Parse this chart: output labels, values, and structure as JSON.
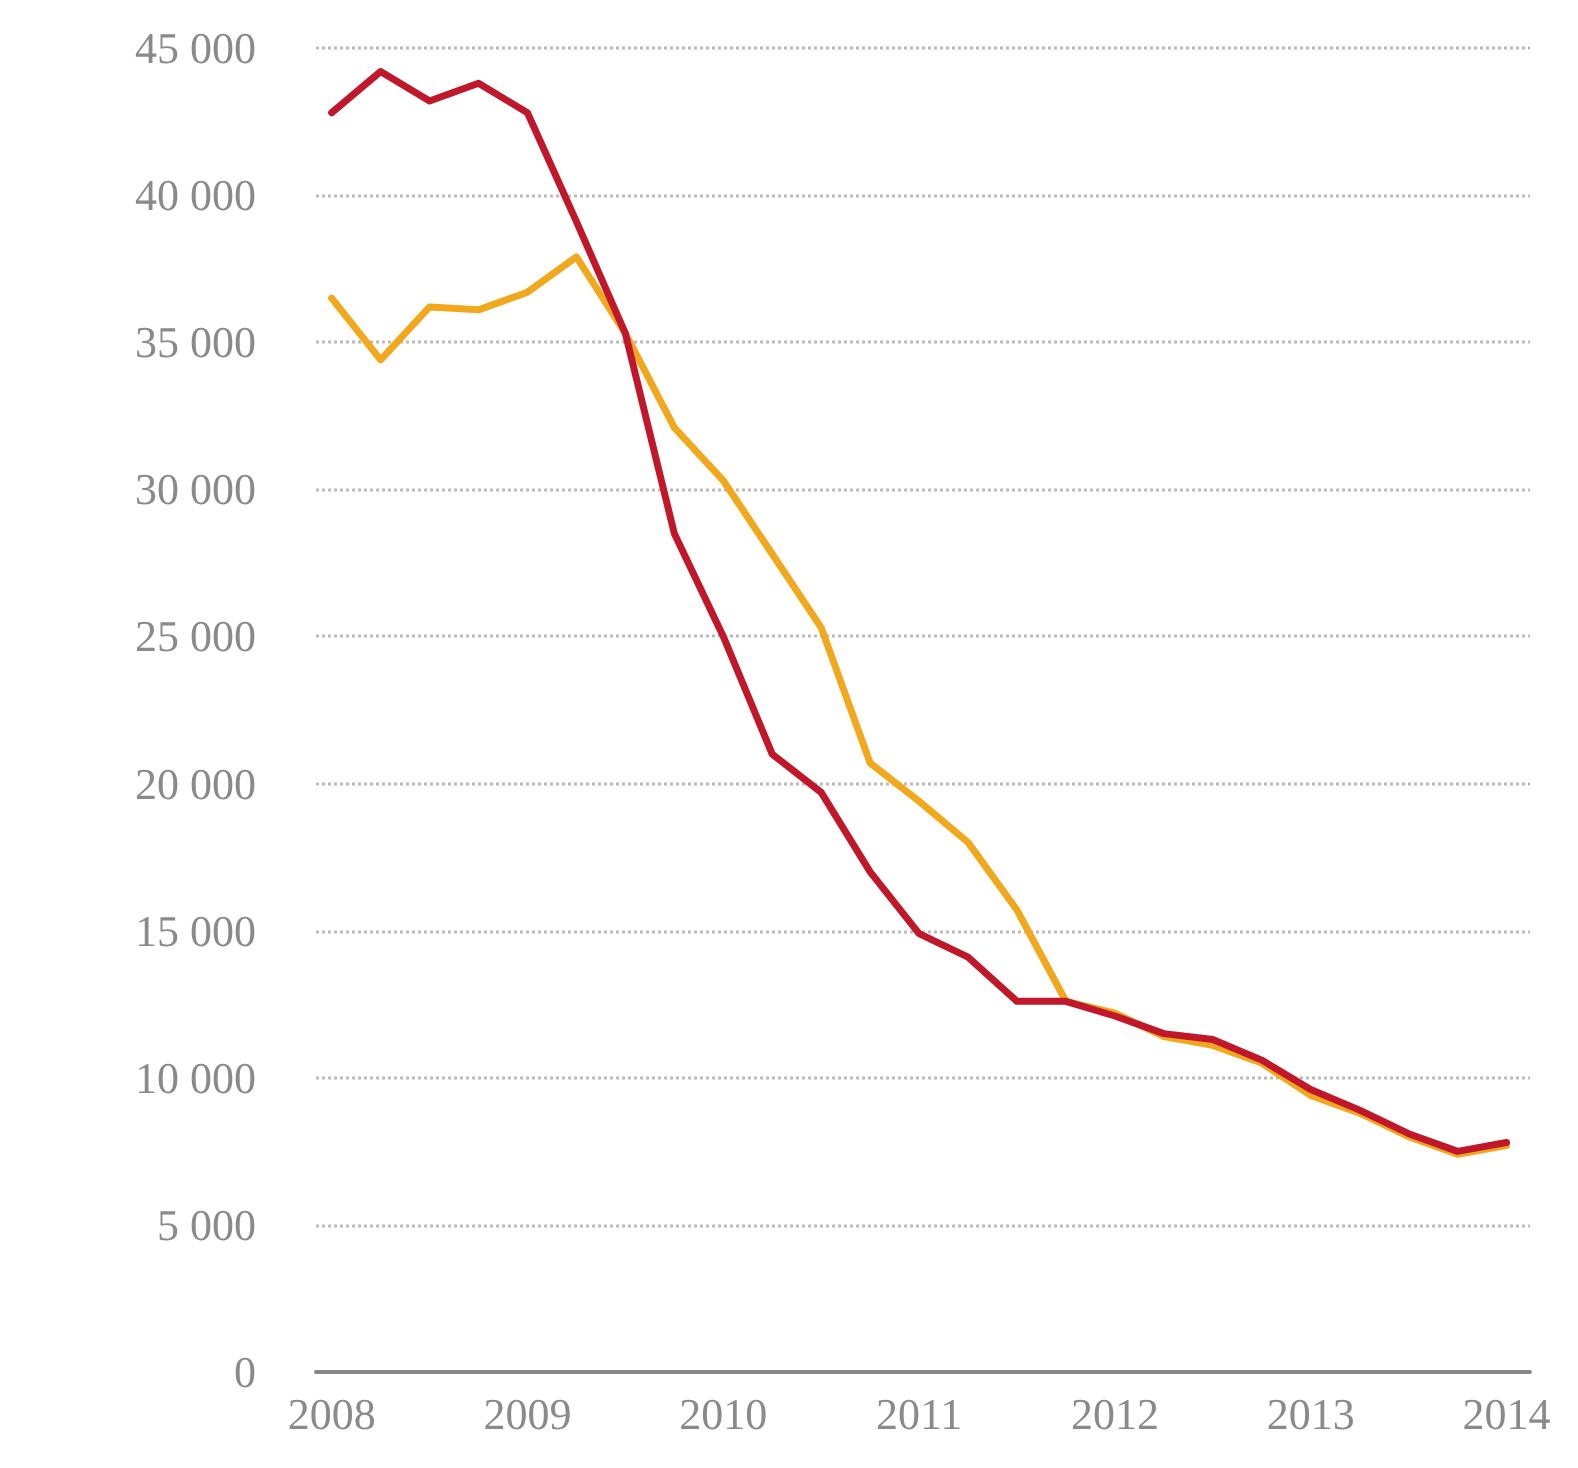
{
  "chart_data": {
    "type": "line",
    "x": [
      2008,
      2008.25,
      2008.5,
      2008.75,
      2009,
      2009.25,
      2009.5,
      2009.75,
      2010,
      2010.25,
      2010.5,
      2010.75,
      2011,
      2011.25,
      2011.5,
      2011.75,
      2012,
      2012.25,
      2012.5,
      2012.75,
      2013,
      2013.25,
      2013.5,
      2013.75,
      2014
    ],
    "series": [
      {
        "color": "#f2a81d",
        "values": [
          36500,
          34400,
          36200,
          36100,
          36700,
          37900,
          35300,
          32100,
          30300,
          27800,
          25300,
          20700,
          19400,
          18000,
          15700,
          12600,
          12200,
          11400,
          11100,
          10500,
          9400,
          8800,
          8000,
          7400,
          7700
        ]
      },
      {
        "color": "#c0182a",
        "values": [
          42800,
          44200,
          43200,
          43800,
          42800,
          39100,
          35300,
          28500,
          25000,
          21000,
          19700,
          17000,
          14900,
          14100,
          12600,
          12600,
          12100,
          11500,
          11300,
          10600,
          9600,
          8900,
          8100,
          7500,
          7800
        ]
      }
    ],
    "xlim": [
      2007.92,
      2014.12
    ],
    "xticks": [
      2008,
      2009,
      2010,
      2011,
      2012,
      2013,
      2014
    ],
    "ylim": [
      0,
      45000
    ],
    "yticks": [
      0,
      {
        "value": 5000,
        "label": "5 000"
      },
      {
        "value": 10000,
        "label": "10 000"
      },
      {
        "value": 15000,
        "label": "15 000"
      },
      {
        "value": 20000,
        "label": "20 000"
      },
      {
        "value": 25000,
        "label": "25 000"
      },
      {
        "value": 30000,
        "label": "30 000"
      },
      {
        "value": 35000,
        "label": "35 000"
      },
      {
        "value": 40000,
        "label": "40 000"
      },
      {
        "value": 45000,
        "label": "45 000"
      }
    ],
    "grid": "y",
    "marker": "none",
    "line_style": "solid"
  }
}
